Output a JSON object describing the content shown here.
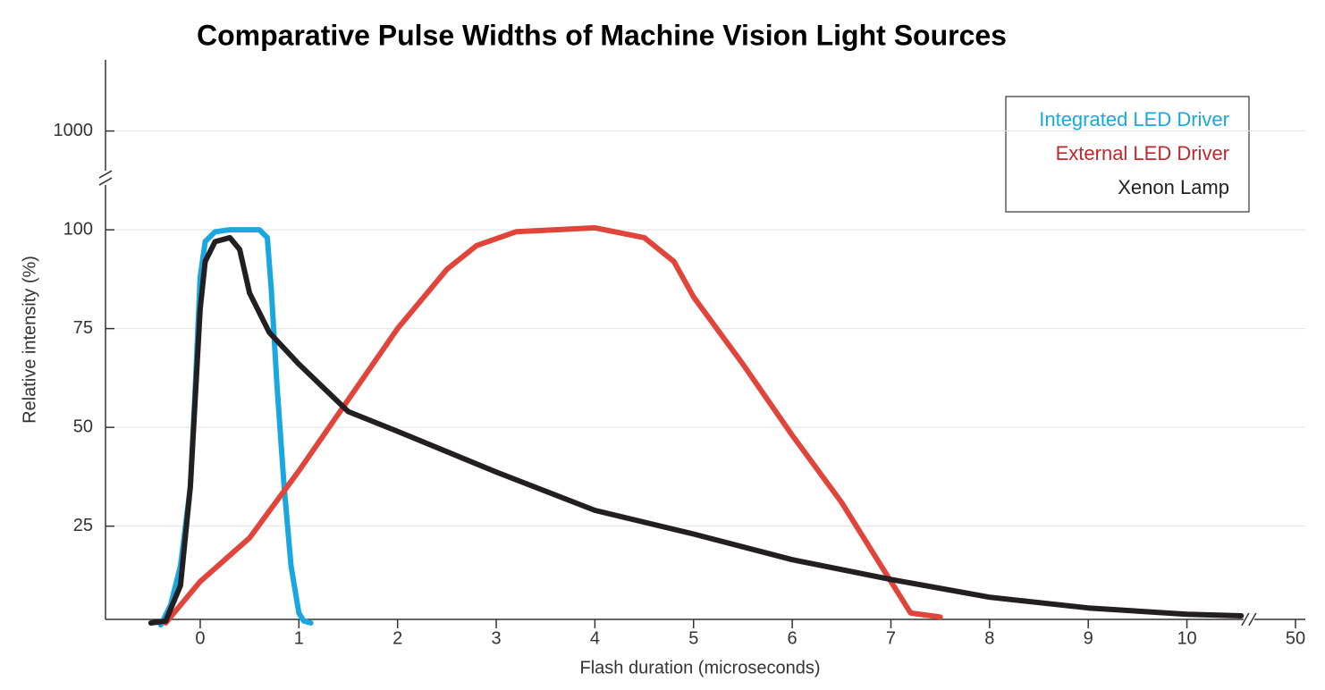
{
  "chart_data": {
    "type": "line",
    "title": "Comparative Pulse Widths of Machine Vision Light Sources",
    "x_label": "Flash duration (microseconds)",
    "y_label": "Relative intensity (%)",
    "xlim": [
      -0.96,
      50.1
    ],
    "xbreak": [
      10.7,
      49.6
    ],
    "xticks": [
      0,
      1,
      2,
      3,
      4,
      5,
      6,
      7,
      8,
      9,
      10,
      50
    ],
    "ylim": [
      1.4,
      1018
    ],
    "ybreak": [
      110,
      985
    ],
    "yticks": [
      25,
      50,
      75,
      100,
      1000
    ],
    "grid": true,
    "legend": "upper right",
    "series": [
      {
        "name": "Integrated LED Driver",
        "color": "#1aa7e0",
        "x": [
          -0.4,
          -0.3,
          -0.2,
          -0.1,
          -0.05,
          0,
          0.05,
          0.15,
          0.3,
          0.6,
          0.68,
          0.72,
          0.78,
          0.85,
          0.92,
          1.0,
          1.05,
          1.12
        ],
        "values": [
          0,
          5,
          15,
          35,
          60,
          88,
          97,
          99.5,
          100,
          100,
          98,
          85,
          60,
          35,
          15,
          3,
          1,
          0.5
        ]
      },
      {
        "name": "External LED Driver",
        "color": "#e0443a",
        "x": [
          -0.35,
          0,
          0.5,
          1,
          1.5,
          2,
          2.5,
          2.8,
          3.2,
          4,
          4.5,
          4.8,
          5,
          5.5,
          6,
          6.5,
          7,
          7.2,
          7.5
        ],
        "values": [
          0.5,
          11,
          22,
          39,
          57,
          75,
          90,
          96,
          99.5,
          100.5,
          98,
          92,
          83,
          66,
          48,
          31,
          11,
          3,
          2
        ]
      },
      {
        "name": "Xenon Lamp",
        "color": "#231f20",
        "x": [
          -0.5,
          -0.35,
          -0.2,
          -0.1,
          0,
          0.05,
          0.15,
          0.3,
          0.4,
          0.5,
          0.7,
          1,
          1.5,
          2,
          3,
          4,
          5,
          6,
          7,
          8,
          9,
          10,
          10.55
        ],
        "values": [
          0.5,
          1,
          10,
          35,
          80,
          92,
          97,
          98,
          95,
          84,
          74,
          66,
          54,
          49,
          38.7,
          29,
          23,
          16.5,
          11.5,
          7,
          4.3,
          2.7,
          2.3
        ]
      }
    ]
  }
}
